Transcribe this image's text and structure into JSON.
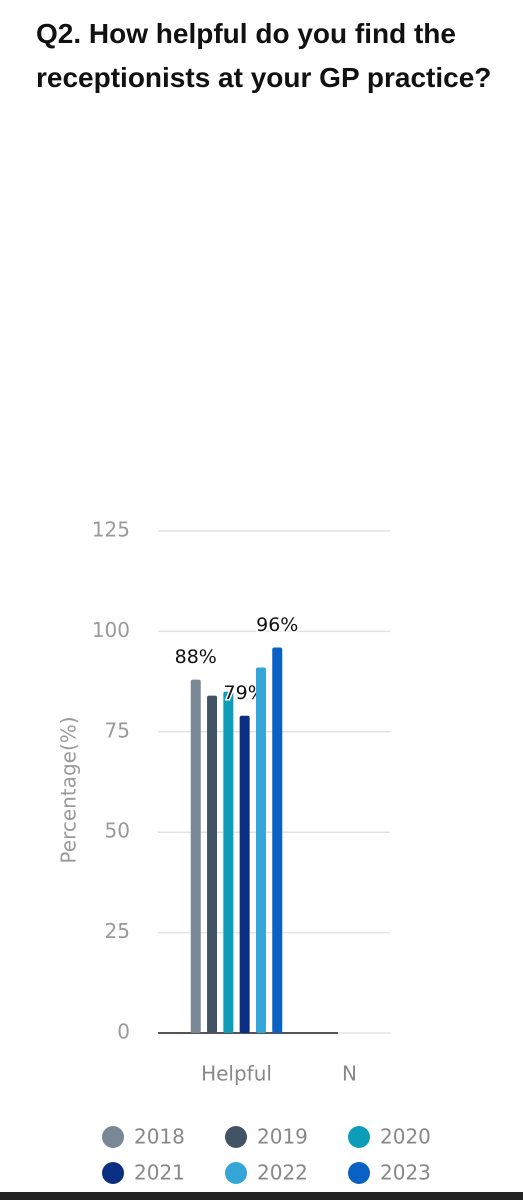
{
  "chart_data": {
    "type": "bar",
    "title": "Q2. How helpful do you find the receptionists at your GP practice?",
    "y_label": "Percentage(%)",
    "categories": [
      "Helpful",
      "N"
    ],
    "series": [
      {
        "name": "2018",
        "color": "#7a8896",
        "values": [
          88,
          null
        ],
        "value_labels": [
          "88%",
          null
        ]
      },
      {
        "name": "2019",
        "color": "#435366",
        "values": [
          84,
          null
        ],
        "value_labels": [
          null,
          null
        ]
      },
      {
        "name": "2020",
        "color": "#0e9db8",
        "values": [
          85,
          null
        ],
        "value_labels": [
          null,
          null
        ]
      },
      {
        "name": "2021",
        "color": "#0a2f82",
        "values": [
          79,
          null
        ],
        "value_labels": [
          "79%",
          null
        ]
      },
      {
        "name": "2022",
        "color": "#35a4d6",
        "values": [
          91,
          null
        ],
        "value_labels": [
          null,
          null
        ]
      },
      {
        "name": "2023",
        "color": "#0a61c4",
        "values": [
          96,
          null
        ],
        "value_labels": [
          "96%",
          null
        ]
      }
    ],
    "ylim": [
      0,
      125
    ],
    "yticks": [
      0,
      25,
      50,
      75,
      100,
      125
    ],
    "grid": true
  }
}
